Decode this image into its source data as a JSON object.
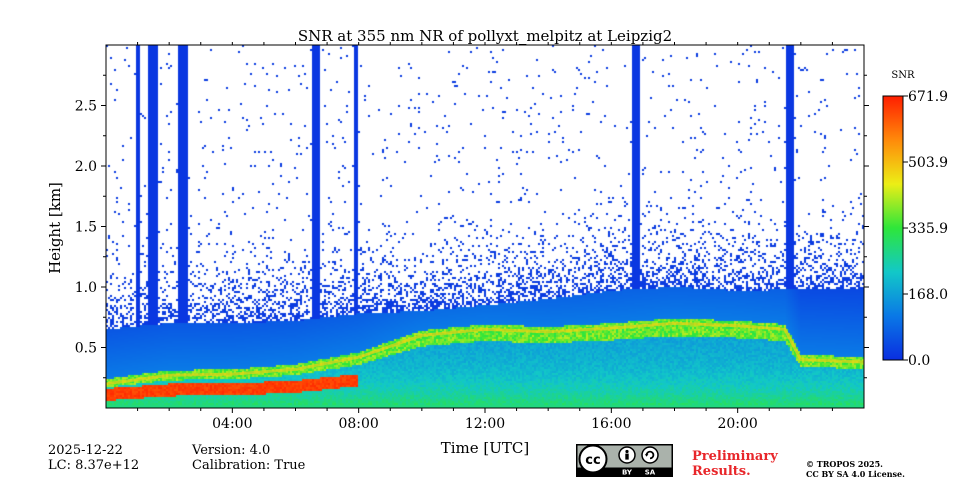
{
  "chart_data": {
    "type": "heatmap",
    "title": "SNR at 355 nm NR of pollyxt_melpitz at Leipzig2",
    "xlabel": "Time [UTC]",
    "ylabel": "Height [km]",
    "xlim_hours": [
      0,
      24
    ],
    "ylim_km": [
      0,
      3.0
    ],
    "x_ticks": [
      {
        "value": 4,
        "label": "04:00"
      },
      {
        "value": 8,
        "label": "08:00"
      },
      {
        "value": 12,
        "label": "12:00"
      },
      {
        "value": 16,
        "label": "16:00"
      },
      {
        "value": 20,
        "label": "20:00"
      }
    ],
    "y_ticks": [
      {
        "value": 0.5,
        "label": "0.5"
      },
      {
        "value": 1.0,
        "label": "1.0"
      },
      {
        "value": 1.5,
        "label": "1.5"
      },
      {
        "value": 2.0,
        "label": "2.0"
      },
      {
        "value": 2.5,
        "label": "2.5"
      }
    ],
    "colorbar": {
      "label": "SNR",
      "min": 0.0,
      "max": 671.9,
      "ticks": [
        {
          "value": 0.0,
          "label": "0.0"
        },
        {
          "value": 168.0,
          "label": "168.0"
        },
        {
          "value": 335.9,
          "label": "335.9"
        },
        {
          "value": 503.9,
          "label": "503.9"
        },
        {
          "value": 671.9,
          "label": "671.9"
        }
      ],
      "colors": [
        "#0a2ee0",
        "#0a78e6",
        "#12c8c8",
        "#2ee63a",
        "#ecee16",
        "#ff8a0a",
        "#ff1e00"
      ]
    },
    "aerosol_layer_top_km": {
      "time_h": [
        0,
        2,
        4,
        6,
        8,
        10,
        12,
        14,
        16,
        18,
        20,
        21.5,
        22,
        24
      ],
      "height_km": [
        0.2,
        0.27,
        0.28,
        0.32,
        0.42,
        0.6,
        0.65,
        0.63,
        0.66,
        0.7,
        0.68,
        0.65,
        0.4,
        0.38
      ]
    },
    "noise_cloud_top_km": {
      "time_h": [
        0,
        2,
        4,
        6,
        8,
        10,
        12,
        14,
        16,
        18,
        20,
        22,
        24
      ],
      "height_km": [
        0.65,
        0.7,
        0.7,
        0.72,
        0.78,
        0.8,
        0.85,
        0.9,
        0.97,
        1.0,
        0.97,
        0.98,
        0.98
      ]
    },
    "vertical_signal_bands": [
      {
        "start_h": 0.95,
        "end_h": 1.05
      },
      {
        "start_h": 1.3,
        "end_h": 1.65
      },
      {
        "start_h": 2.3,
        "end_h": 2.6
      },
      {
        "start_h": 6.5,
        "end_h": 6.75
      },
      {
        "start_h": 7.85,
        "end_h": 7.95
      },
      {
        "start_h": 16.65,
        "end_h": 16.9
      },
      {
        "start_h": 21.55,
        "end_h": 21.8
      }
    ]
  },
  "footer": {
    "date": "2025-12-22",
    "lc": "LC: 8.37e+12",
    "version": "Version: 4.0",
    "calibration": "Calibration: True",
    "preliminary_line1": "Preliminary",
    "preliminary_line2": "Results.",
    "copyright_line1": "© TROPOS 2025.",
    "copyright_line2": "CC BY SA 4.0 License.",
    "badge_cc": "cc",
    "badge_by": "BY",
    "badge_sa": "SA"
  }
}
